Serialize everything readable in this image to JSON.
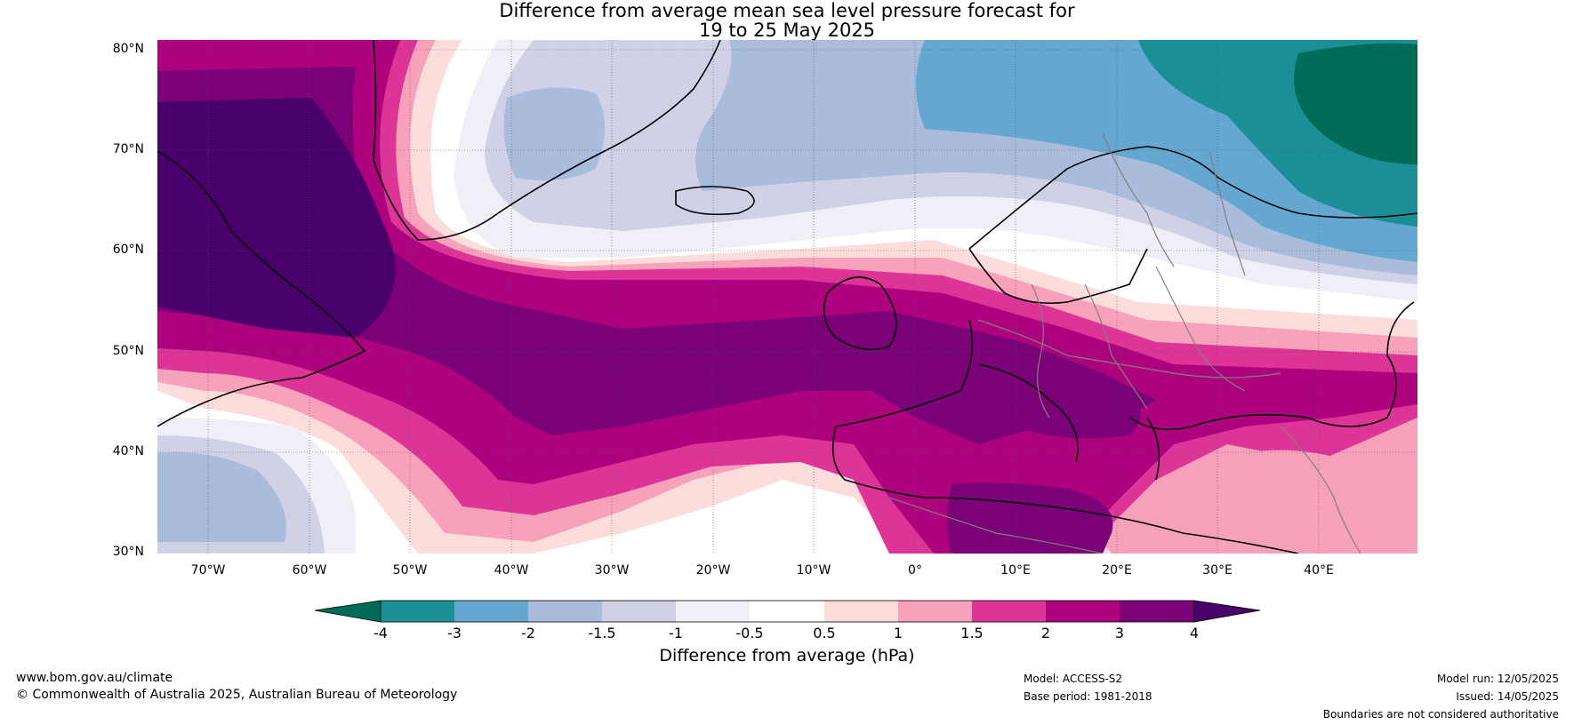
{
  "title": {
    "line1": "Difference from average mean sea level pressure forecast for",
    "line2": "19 to 25 May 2025"
  },
  "map": {
    "lat_labels": [
      "80°N",
      "70°N",
      "60°N",
      "50°N",
      "40°N",
      "30°N"
    ],
    "lon_labels": [
      "70°W",
      "60°W",
      "50°W",
      "40°W",
      "30°W",
      "20°W",
      "10°W",
      "0°",
      "10°E",
      "20°E",
      "30°E",
      "40°E"
    ]
  },
  "colorbar": {
    "title": "Difference from average (hPa)",
    "tick_labels": [
      "-4",
      "-3",
      "-2",
      "-1.5",
      "-1",
      "-0.5",
      "0.5",
      "1",
      "1.5",
      "2",
      "3",
      "4"
    ],
    "colors": [
      "#006b56",
      "#1a8f96",
      "#64a8d1",
      "#a9bcdc",
      "#d0d1e6",
      "#f0eef6",
      "#ffffff",
      "#fddcdc",
      "#f7a1bb",
      "#dd3497",
      "#ae017e",
      "#7a0177",
      "#49006a"
    ]
  },
  "footer": {
    "website": "www.bom.gov.au/climate",
    "copyright": "© Commonwealth of Australia 2025, Australian Bureau of Meteorology",
    "model": "Model: ACCESS-S2",
    "base_period": "Base period: 1981-2018",
    "model_run": "Model run: 12/05/2025",
    "issued": "Issued: 14/05/2025",
    "disclaimer": "Boundaries are not considered authoritative"
  }
}
